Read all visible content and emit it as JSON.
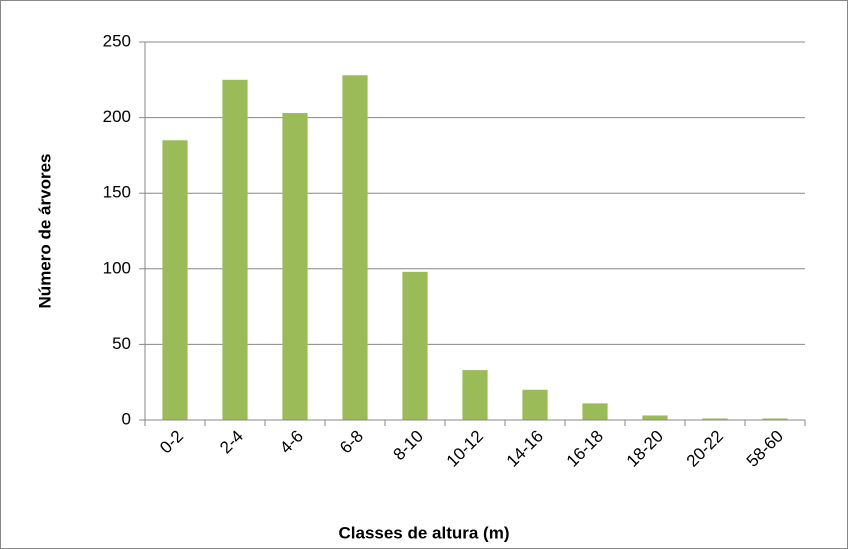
{
  "chart_data": {
    "type": "bar",
    "x_label": "Classes de altura (m)",
    "y_label": "Número de árvores",
    "categories": [
      "0-2",
      "2-4",
      "4-6",
      "6-8",
      "8-10",
      "10-12",
      "14-16",
      "16-18",
      "18-20",
      "20-22",
      "58-60"
    ],
    "values": [
      185,
      225,
      203,
      228,
      98,
      33,
      20,
      11,
      3,
      1,
      1
    ],
    "color": "#9bbb59",
    "ylim": [
      0,
      250
    ],
    "yticks": [
      0,
      50,
      100,
      150,
      200,
      250
    ],
    "grid": true
  }
}
